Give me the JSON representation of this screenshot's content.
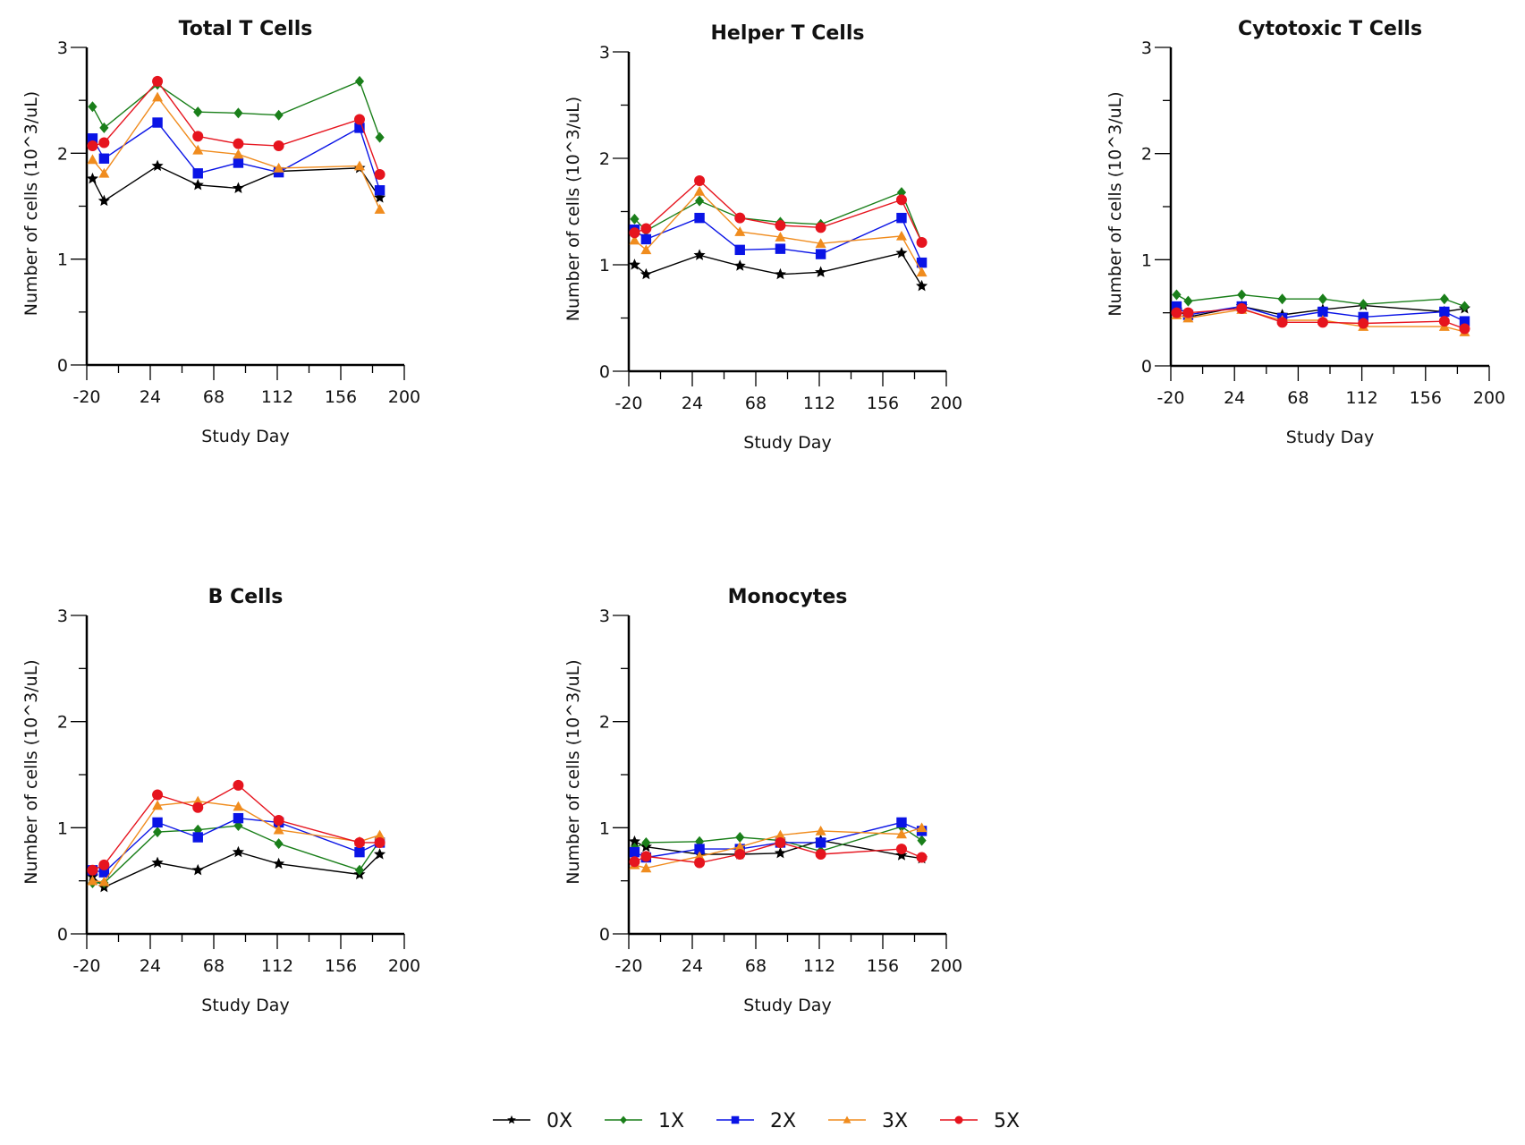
{
  "chart_data": [
    {
      "type": "line",
      "title": "Total T Cells",
      "xlabel": "Study Day",
      "ylabel": "Number of cells (10^3/uL)",
      "xlim": [
        -20,
        200
      ],
      "ylim": [
        0,
        3
      ],
      "xticks": [
        "-20",
        "24",
        "68",
        "112",
        "156",
        "200"
      ],
      "yticks": [
        "0",
        "1",
        "2",
        "3"
      ],
      "x": [
        -16,
        -8,
        29,
        57,
        85,
        113,
        169,
        183
      ],
      "series": [
        {
          "name": "0X",
          "values": [
            1.76,
            1.55,
            1.88,
            1.7,
            1.67,
            1.83,
            1.86,
            1.58
          ]
        },
        {
          "name": "1X",
          "values": [
            2.44,
            2.24,
            2.65,
            2.39,
            2.38,
            2.36,
            2.68,
            2.15
          ]
        },
        {
          "name": "2X",
          "values": [
            2.14,
            1.95,
            2.29,
            1.81,
            1.91,
            1.82,
            2.24,
            1.65
          ]
        },
        {
          "name": "3X",
          "values": [
            1.94,
            1.81,
            2.53,
            2.03,
            1.99,
            1.86,
            1.88,
            1.47
          ]
        },
        {
          "name": "5X",
          "values": [
            2.07,
            2.1,
            2.68,
            2.16,
            2.09,
            2.07,
            2.32,
            1.8
          ]
        }
      ]
    },
    {
      "type": "line",
      "title": "Helper T Cells",
      "xlabel": "Study Day",
      "ylabel": "Number of cells (10^3/uL)",
      "xlim": [
        -20,
        200
      ],
      "ylim": [
        0,
        3
      ],
      "xticks": [
        "-20",
        "24",
        "68",
        "112",
        "156",
        "200"
      ],
      "yticks": [
        "0",
        "1",
        "2",
        "3"
      ],
      "x": [
        -16,
        -8,
        29,
        57,
        85,
        113,
        169,
        183
      ],
      "series": [
        {
          "name": "0X",
          "values": [
            1.0,
            0.91,
            1.09,
            0.99,
            0.91,
            0.93,
            1.11,
            0.8
          ]
        },
        {
          "name": "1X",
          "values": [
            1.43,
            1.32,
            1.6,
            1.44,
            1.4,
            1.38,
            1.68,
            1.21
          ]
        },
        {
          "name": "2X",
          "values": [
            1.33,
            1.24,
            1.44,
            1.14,
            1.15,
            1.1,
            1.44,
            1.02
          ]
        },
        {
          "name": "3X",
          "values": [
            1.23,
            1.14,
            1.69,
            1.31,
            1.26,
            1.2,
            1.27,
            0.93
          ]
        },
        {
          "name": "5X",
          "values": [
            1.3,
            1.34,
            1.79,
            1.44,
            1.37,
            1.35,
            1.61,
            1.21
          ]
        }
      ]
    },
    {
      "type": "line",
      "title": "Cytotoxic T Cells",
      "xlabel": "Study Day",
      "ylabel": "Number of cells (10^3/uL)",
      "xlim": [
        -20,
        200
      ],
      "ylim": [
        0,
        3
      ],
      "xticks": [
        "-20",
        "24",
        "68",
        "112",
        "156",
        "200"
      ],
      "yticks": [
        "0",
        "1",
        "2",
        "3"
      ],
      "x": [
        -16,
        -8,
        29,
        57,
        85,
        113,
        169,
        183
      ],
      "series": [
        {
          "name": "0X",
          "values": [
            0.53,
            0.46,
            0.56,
            0.48,
            0.53,
            0.57,
            0.51,
            0.54
          ]
        },
        {
          "name": "1X",
          "values": [
            0.67,
            0.61,
            0.67,
            0.63,
            0.63,
            0.58,
            0.63,
            0.56
          ]
        },
        {
          "name": "2X",
          "values": [
            0.56,
            0.48,
            0.56,
            0.45,
            0.51,
            0.46,
            0.51,
            0.42
          ]
        },
        {
          "name": "3X",
          "values": [
            0.48,
            0.45,
            0.53,
            0.43,
            0.43,
            0.37,
            0.37,
            0.32
          ]
        },
        {
          "name": "5X",
          "values": [
            0.5,
            0.5,
            0.54,
            0.41,
            0.41,
            0.4,
            0.42,
            0.35
          ]
        }
      ]
    },
    {
      "type": "line",
      "title": "B Cells",
      "xlabel": "Study Day",
      "ylabel": "Number of cells (10^3/uL)",
      "xlim": [
        -20,
        200
      ],
      "ylim": [
        0,
        3
      ],
      "xticks": [
        "-20",
        "24",
        "68",
        "112",
        "156",
        "200"
      ],
      "yticks": [
        "0",
        "1",
        "2",
        "3"
      ],
      "x": [
        -16,
        -8,
        29,
        57,
        85,
        113,
        169,
        183
      ],
      "series": [
        {
          "name": "0X",
          "values": [
            0.54,
            0.44,
            0.67,
            0.6,
            0.77,
            0.66,
            0.56,
            0.75
          ]
        },
        {
          "name": "1X",
          "values": [
            0.48,
            0.48,
            0.96,
            0.98,
            1.02,
            0.85,
            0.6,
            0.88
          ]
        },
        {
          "name": "2X",
          "values": [
            0.6,
            0.58,
            1.05,
            0.91,
            1.09,
            1.05,
            0.77,
            0.86
          ]
        },
        {
          "name": "3X",
          "values": [
            0.5,
            0.49,
            1.21,
            1.25,
            1.2,
            0.98,
            0.87,
            0.93
          ]
        },
        {
          "name": "5X",
          "values": [
            0.6,
            0.65,
            1.31,
            1.19,
            1.4,
            1.07,
            0.86,
            0.86
          ]
        }
      ]
    },
    {
      "type": "line",
      "title": "Monocytes",
      "xlabel": "Study Day",
      "ylabel": "Number of cells (10^3/uL)",
      "xlim": [
        -20,
        200
      ],
      "ylim": [
        0,
        3
      ],
      "xticks": [
        "-20",
        "24",
        "68",
        "112",
        "156",
        "200"
      ],
      "yticks": [
        "0",
        "1",
        "2",
        "3"
      ],
      "x": [
        -16,
        -8,
        29,
        57,
        85,
        113,
        169,
        183
      ],
      "series": [
        {
          "name": "0X",
          "values": [
            0.87,
            0.82,
            0.75,
            0.75,
            0.76,
            0.88,
            0.74,
            0.71
          ]
        },
        {
          "name": "1X",
          "values": [
            0.81,
            0.86,
            0.87,
            0.91,
            0.88,
            0.78,
            1.01,
            0.88
          ]
        },
        {
          "name": "2X",
          "values": [
            0.77,
            0.72,
            0.8,
            0.8,
            0.86,
            0.86,
            1.05,
            0.97
          ]
        },
        {
          "name": "3X",
          "values": [
            0.65,
            0.62,
            0.73,
            0.82,
            0.93,
            0.97,
            0.94,
            1.0
          ]
        },
        {
          "name": "5X",
          "values": [
            0.68,
            0.73,
            0.67,
            0.75,
            0.86,
            0.75,
            0.8,
            0.72
          ]
        }
      ]
    }
  ],
  "legend": {
    "placement": "bottom-center",
    "entries": [
      {
        "name": "0X",
        "color": "#000000",
        "marker": "star"
      },
      {
        "name": "1X",
        "color": "#1a7f1a",
        "marker": "diamond"
      },
      {
        "name": "2X",
        "color": "#0a14e6",
        "marker": "square"
      },
      {
        "name": "3X",
        "color": "#f08c1e",
        "marker": "triangle"
      },
      {
        "name": "5X",
        "color": "#e6141e",
        "marker": "circle"
      }
    ]
  }
}
